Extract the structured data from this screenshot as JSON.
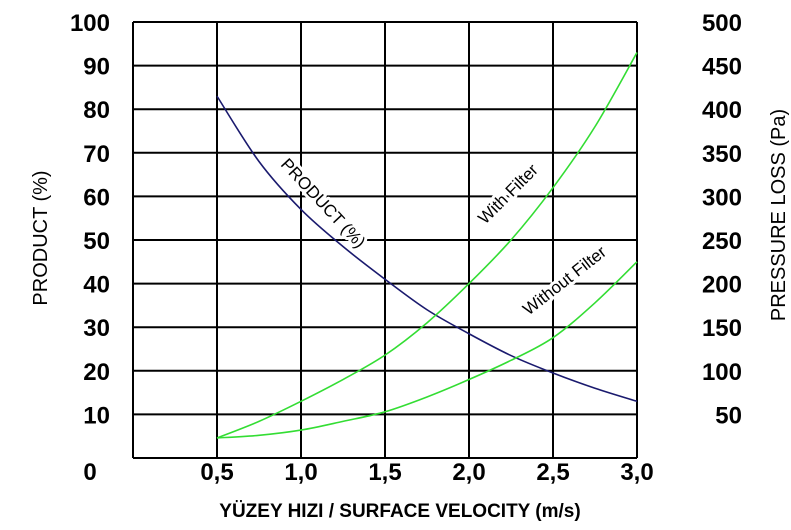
{
  "chart_data": {
    "type": "line",
    "xlabel": "YÜZEY HIZI / SURFACE VELOCITY (m/s)",
    "ylabel": "PRODUCT (%)",
    "y2label": "PRESSURE LOSS (Pa)",
    "xlim": [
      0,
      3.0
    ],
    "ylim": [
      0,
      100
    ],
    "y2lim": [
      0,
      500
    ],
    "grid": true,
    "x_ticks": [
      {
        "value": 0.5,
        "label": "0,5"
      },
      {
        "value": 1.0,
        "label": "1,0"
      },
      {
        "value": 1.5,
        "label": "1,5"
      },
      {
        "value": 2.0,
        "label": "2,0"
      },
      {
        "value": 2.5,
        "label": "2,5"
      },
      {
        "value": 3.0,
        "label": "3,0"
      }
    ],
    "x_origin_label": "0",
    "y_ticks": [
      {
        "value": 10,
        "label": "10"
      },
      {
        "value": 20,
        "label": "20"
      },
      {
        "value": 30,
        "label": "30"
      },
      {
        "value": 40,
        "label": "40"
      },
      {
        "value": 50,
        "label": "50"
      },
      {
        "value": 60,
        "label": "60"
      },
      {
        "value": 70,
        "label": "70"
      },
      {
        "value": 80,
        "label": "80"
      },
      {
        "value": 90,
        "label": "90"
      },
      {
        "value": 100,
        "label": "100"
      }
    ],
    "y2_ticks": [
      {
        "value": 50,
        "label": "50"
      },
      {
        "value": 100,
        "label": "100"
      },
      {
        "value": 150,
        "label": "150"
      },
      {
        "value": 200,
        "label": "200"
      },
      {
        "value": 250,
        "label": "250"
      },
      {
        "value": 300,
        "label": "300"
      },
      {
        "value": 350,
        "label": "350"
      },
      {
        "value": 400,
        "label": "400"
      },
      {
        "value": 450,
        "label": "450"
      },
      {
        "value": 500,
        "label": "500"
      }
    ],
    "series": [
      {
        "name": "PRODUCT (%)",
        "axis": "left",
        "color": "#1a1a6e",
        "x": [
          0.5,
          0.75,
          1.0,
          1.25,
          1.5,
          1.75,
          2.0,
          2.25,
          2.5,
          2.75,
          3.0
        ],
        "y": [
          83,
          68,
          57,
          48.5,
          41,
          34,
          28.5,
          23.5,
          19.5,
          16,
          13
        ]
      },
      {
        "name": "With Filter",
        "axis": "right",
        "color": "#33dd33",
        "x": [
          0.5,
          0.75,
          1.0,
          1.25,
          1.5,
          1.75,
          2.0,
          2.25,
          2.5,
          2.75,
          3.0
        ],
        "y": [
          23,
          42,
          65,
          90,
          118,
          155,
          200,
          250,
          310,
          380,
          465
        ]
      },
      {
        "name": "Without Filter",
        "axis": "right",
        "color": "#33dd33",
        "x": [
          0.5,
          0.75,
          1.0,
          1.25,
          1.5,
          1.75,
          2.0,
          2.25,
          2.5,
          2.75,
          3.0
        ],
        "y": [
          23,
          26,
          32,
          42,
          53,
          70,
          90,
          112,
          138,
          178,
          225
        ]
      }
    ]
  }
}
